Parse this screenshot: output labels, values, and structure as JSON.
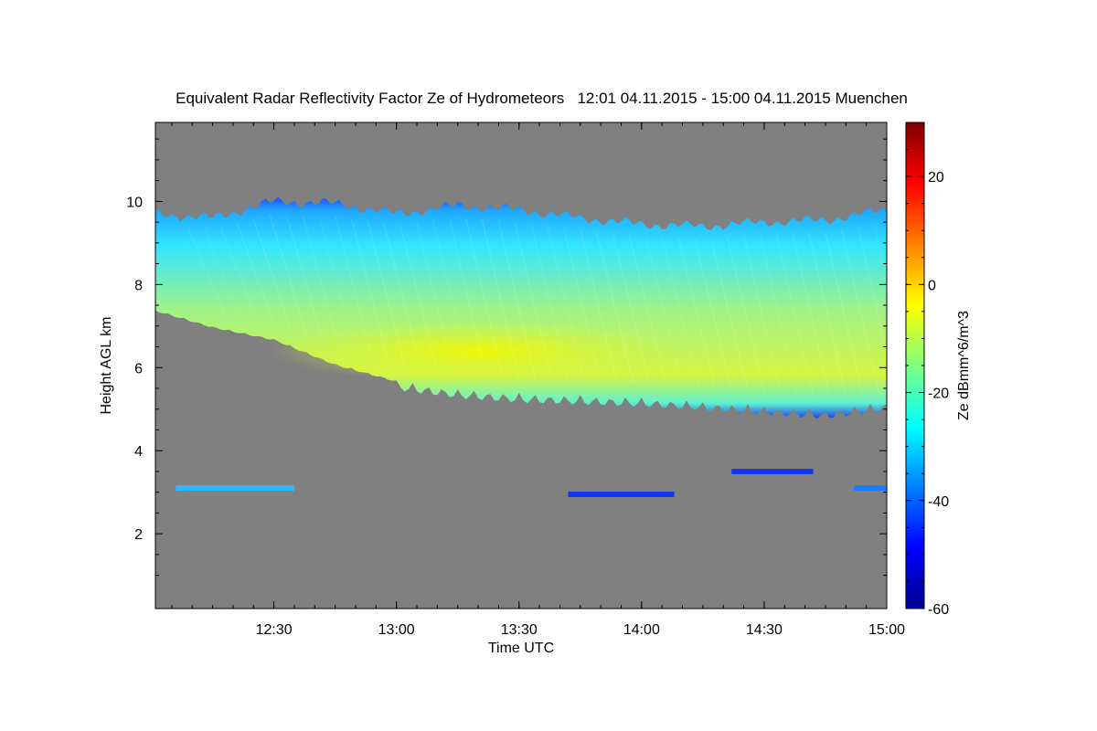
{
  "chart_data": {
    "type": "heatmap",
    "title": "Equivalent Radar Reflectivity Factor Ze of Hydrometeors   12:01 04.11.2015 - 15:00 04.11.2015 Muenchen",
    "xlabel": "Time UTC",
    "ylabel": "Height AGL km",
    "colorbar_label": "Ze dBmm^6/m^3",
    "x_range": [
      "12:01",
      "15:00"
    ],
    "y_range_km": [
      0.2,
      11.9
    ],
    "x_ticks": [
      "12:30",
      "13:00",
      "13:30",
      "14:00",
      "14:30",
      "15:00"
    ],
    "y_ticks": [
      "2",
      "4",
      "6",
      "8",
      "10"
    ],
    "colorbar_range": [
      -60,
      30
    ],
    "colorbar_ticks": [
      "-60",
      "-40",
      "-20",
      "0",
      "20"
    ],
    "background_color": "#808080",
    "colormap": "jet",
    "main_layer": {
      "time": [
        "12:01",
        "12:15",
        "12:30",
        "12:45",
        "13:00",
        "13:15",
        "13:30",
        "13:45",
        "14:00",
        "14:15",
        "14:30",
        "14:45",
        "15:00"
      ],
      "cloud_top_km": [
        9.7,
        9.6,
        10.0,
        9.95,
        9.7,
        9.9,
        9.8,
        9.6,
        9.45,
        9.4,
        9.5,
        9.55,
        9.8
      ],
      "cloud_base_km": [
        7.4,
        7.0,
        6.7,
        6.1,
        5.7,
        5.5,
        5.4,
        5.35,
        5.3,
        5.2,
        5.1,
        5.0,
        5.2
      ],
      "peak_ze_dbz": -10,
      "peak_time": "13:20",
      "peak_height_km": 6.4
    },
    "low_echoes": [
      {
        "start": "12:06",
        "end": "12:35",
        "height_km": 3.1,
        "ze_dbz": -30
      },
      {
        "start": "13:42",
        "end": "14:08",
        "height_km": 2.95,
        "ze_dbz": -40
      },
      {
        "start": "14:22",
        "end": "14:42",
        "height_km": 3.5,
        "ze_dbz": -42
      },
      {
        "start": "14:52",
        "end": "15:00",
        "height_km": 3.1,
        "ze_dbz": -33
      }
    ]
  }
}
